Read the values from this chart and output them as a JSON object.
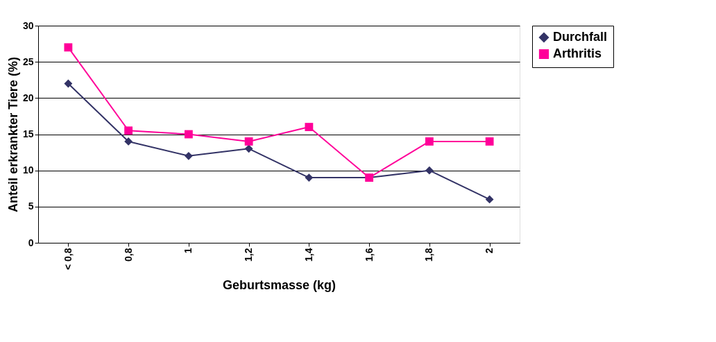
{
  "chart_data": {
    "type": "line",
    "xlabel": "Geburtsmasse (kg)",
    "ylabel": "Anteil erkrankter Tiere (%)",
    "categories": [
      "< 0,8",
      "0,8",
      "1",
      "1,2",
      "1,4",
      "1,6",
      "1,8",
      "2"
    ],
    "series": [
      {
        "name": "Durchfall",
        "color": "#333366",
        "marker": "diamond",
        "values": [
          22,
          14,
          12,
          13,
          9,
          9,
          10,
          6
        ]
      },
      {
        "name": "Arthritis",
        "color": "#ff0099",
        "marker": "square",
        "values": [
          27,
          15.5,
          15,
          14,
          16,
          9,
          14,
          14
        ]
      }
    ],
    "ylim": [
      0,
      30
    ],
    "yticks": [
      0,
      5,
      10,
      15,
      20,
      25,
      30
    ],
    "grid": "y",
    "legend": "right",
    "line_style": "solid"
  }
}
